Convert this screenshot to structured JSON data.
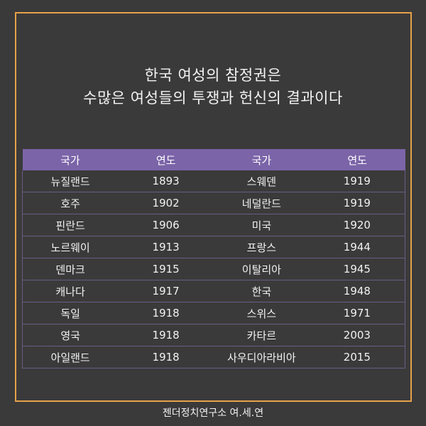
{
  "colors": {
    "background": "#3b3a3a",
    "frame_border": "#e6a24a",
    "table_header": "#7b64a8"
  },
  "headline": {
    "line1": "한국 여성의 참정권은",
    "line2": "수많은 여성들의 투쟁과 헌신의 결과이다"
  },
  "table": {
    "headers": [
      "국가",
      "연도",
      "국가",
      "연도"
    ],
    "rows": [
      [
        "뉴질랜드",
        "1893",
        "스웨덴",
        "1919"
      ],
      [
        "호주",
        "1902",
        "네덜란드",
        "1919"
      ],
      [
        "핀란드",
        "1906",
        "미국",
        "1920"
      ],
      [
        "노르웨이",
        "1913",
        "프랑스",
        "1944"
      ],
      [
        "덴마크",
        "1915",
        "이탈리아",
        "1945"
      ],
      [
        "캐나다",
        "1917",
        "한국",
        "1948"
      ],
      [
        "독일",
        "1918",
        "스위스",
        "1971"
      ],
      [
        "영국",
        "1918",
        "카타르",
        "2003"
      ],
      [
        "아일랜드",
        "1918",
        "사우디아라비아",
        "2015"
      ]
    ]
  },
  "footer": {
    "text": "젠더정치연구소 여.세.연"
  }
}
